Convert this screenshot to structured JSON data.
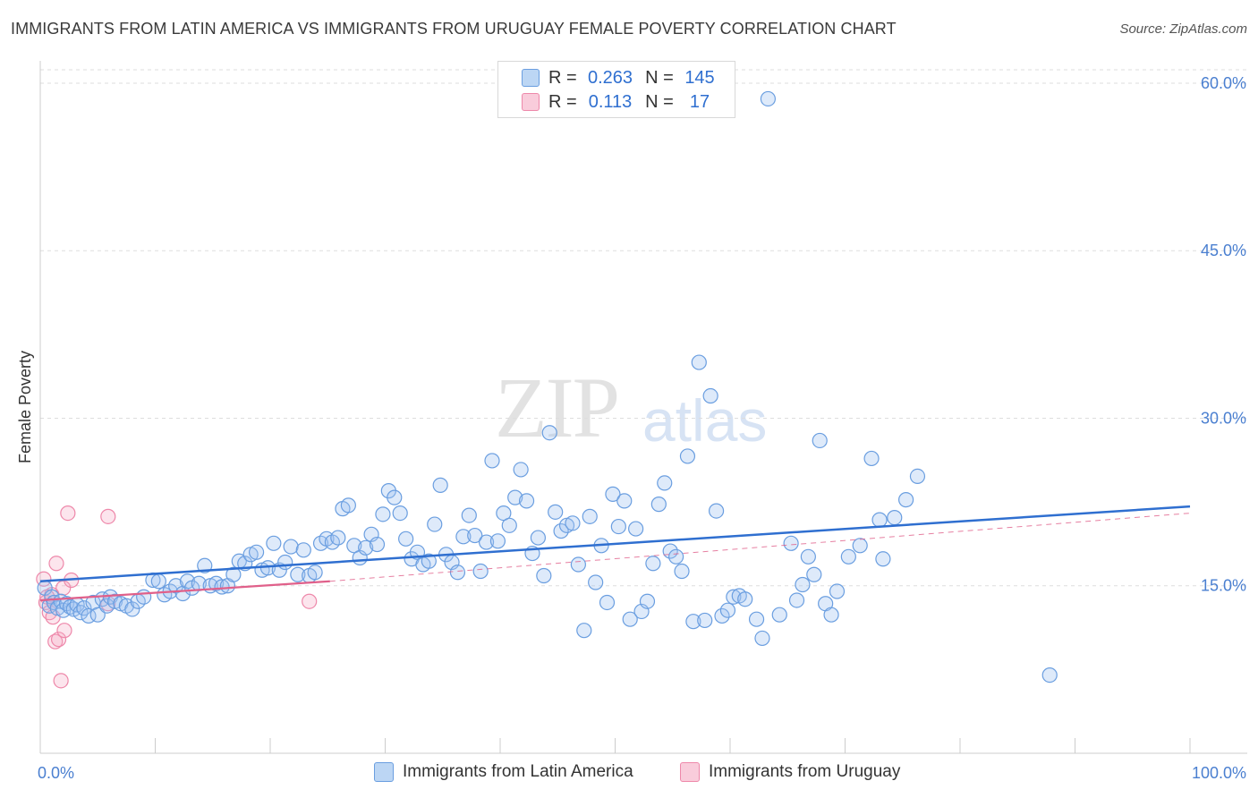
{
  "title": "IMMIGRANTS FROM LATIN AMERICA VS IMMIGRANTS FROM URUGUAY FEMALE POVERTY CORRELATION CHART",
  "source": "Source: ZipAtlas.com",
  "watermark": {
    "zip": "ZIP",
    "atlas": "atlas"
  },
  "legend": {
    "rows": [
      {
        "r_label": "R =",
        "r_value": "0.263",
        "n_label": "N =",
        "n_value": "145"
      },
      {
        "r_label": "R =",
        "r_value": "0.113",
        "n_label": "N =",
        "n_value": "17"
      }
    ]
  },
  "bottom_legend": {
    "series1": "Immigrants from Latin America",
    "series2": "Immigrants from Uruguay"
  },
  "chart_data": {
    "type": "scatter",
    "title": "IMMIGRANTS FROM LATIN AMERICA VS IMMIGRANTS FROM URUGUAY FEMALE POVERTY CORRELATION CHART",
    "xlabel": "",
    "ylabel": "Female Poverty",
    "xlim": [
      0,
      100
    ],
    "ylim": [
      0,
      61.2
    ],
    "x_tick_labels": [
      "0.0%",
      "100.0%"
    ],
    "y_ticks": [
      15,
      30,
      45,
      60
    ],
    "y_tick_labels": [
      "15.0%",
      "30.0%",
      "45.0%",
      "60.0%"
    ],
    "colors": {
      "series1_fill": "rgba(160,196,240,0.35)",
      "series1_stroke": "#6a9ee0",
      "series1_line": "#2f6fd0",
      "series2_fill": "rgba(245,170,195,0.3)",
      "series2_stroke": "#ee88aa",
      "series2_line": "#e0608a",
      "grid": "#dddddd"
    },
    "series": [
      {
        "name": "Immigrants from Latin America",
        "r": 0.263,
        "n": 145,
        "trend": {
          "x": [
            0,
            100
          ],
          "y": [
            15.4,
            22.1
          ]
        },
        "points": [
          [
            0.4,
            14.8
          ],
          [
            0.8,
            13.2
          ],
          [
            1.0,
            14.0
          ],
          [
            1.2,
            13.5
          ],
          [
            1.5,
            13.0
          ],
          [
            1.8,
            13.6
          ],
          [
            2.0,
            12.8
          ],
          [
            2.3,
            13.4
          ],
          [
            2.6,
            13.1
          ],
          [
            2.9,
            12.9
          ],
          [
            3.2,
            13.3
          ],
          [
            3.5,
            12.6
          ],
          [
            3.8,
            13.0
          ],
          [
            4.2,
            12.3
          ],
          [
            4.6,
            13.5
          ],
          [
            5.0,
            12.4
          ],
          [
            5.4,
            13.8
          ],
          [
            5.8,
            13.2
          ],
          [
            6.1,
            14.0
          ],
          [
            6.5,
            13.6
          ],
          [
            7.0,
            13.4
          ],
          [
            7.5,
            13.2
          ],
          [
            8.0,
            12.9
          ],
          [
            8.5,
            13.6
          ],
          [
            9.0,
            14.0
          ],
          [
            9.8,
            15.5
          ],
          [
            10.3,
            15.4
          ],
          [
            10.8,
            14.2
          ],
          [
            11.3,
            14.5
          ],
          [
            11.8,
            15.0
          ],
          [
            12.4,
            14.3
          ],
          [
            12.8,
            15.4
          ],
          [
            13.2,
            14.8
          ],
          [
            13.8,
            15.2
          ],
          [
            14.3,
            16.8
          ],
          [
            14.8,
            15.0
          ],
          [
            15.3,
            15.2
          ],
          [
            15.8,
            14.9
          ],
          [
            16.3,
            15.0
          ],
          [
            16.8,
            16.0
          ],
          [
            17.3,
            17.2
          ],
          [
            17.8,
            17.0
          ],
          [
            18.3,
            17.8
          ],
          [
            18.8,
            18.0
          ],
          [
            19.3,
            16.4
          ],
          [
            19.8,
            16.6
          ],
          [
            20.3,
            18.8
          ],
          [
            20.8,
            16.4
          ],
          [
            21.3,
            17.1
          ],
          [
            21.8,
            18.5
          ],
          [
            22.4,
            16.0
          ],
          [
            22.9,
            18.2
          ],
          [
            23.4,
            15.9
          ],
          [
            23.9,
            16.2
          ],
          [
            24.4,
            18.8
          ],
          [
            24.9,
            19.2
          ],
          [
            25.4,
            18.9
          ],
          [
            25.9,
            19.3
          ],
          [
            26.3,
            21.9
          ],
          [
            26.8,
            22.2
          ],
          [
            27.3,
            18.6
          ],
          [
            27.8,
            17.5
          ],
          [
            28.3,
            18.4
          ],
          [
            28.8,
            19.6
          ],
          [
            29.3,
            18.7
          ],
          [
            29.8,
            21.4
          ],
          [
            30.3,
            23.5
          ],
          [
            30.8,
            22.9
          ],
          [
            31.3,
            21.5
          ],
          [
            31.8,
            19.2
          ],
          [
            32.3,
            17.4
          ],
          [
            32.8,
            18.0
          ],
          [
            33.3,
            16.9
          ],
          [
            33.8,
            17.2
          ],
          [
            34.3,
            20.5
          ],
          [
            34.8,
            24.0
          ],
          [
            35.3,
            17.8
          ],
          [
            35.8,
            17.1
          ],
          [
            36.3,
            16.2
          ],
          [
            36.8,
            19.4
          ],
          [
            37.3,
            21.3
          ],
          [
            37.8,
            19.5
          ],
          [
            38.3,
            16.3
          ],
          [
            38.8,
            18.9
          ],
          [
            39.3,
            26.2
          ],
          [
            39.8,
            19.0
          ],
          [
            40.3,
            21.5
          ],
          [
            40.8,
            20.4
          ],
          [
            41.3,
            22.9
          ],
          [
            41.8,
            25.4
          ],
          [
            42.3,
            22.6
          ],
          [
            42.8,
            17.9
          ],
          [
            43.3,
            19.3
          ],
          [
            43.8,
            15.9
          ],
          [
            44.3,
            28.7
          ],
          [
            44.8,
            21.6
          ],
          [
            45.3,
            19.9
          ],
          [
            45.8,
            20.4
          ],
          [
            46.3,
            20.6
          ],
          [
            46.8,
            16.9
          ],
          [
            47.3,
            11.0
          ],
          [
            47.8,
            21.2
          ],
          [
            48.3,
            15.3
          ],
          [
            48.8,
            18.6
          ],
          [
            49.3,
            13.5
          ],
          [
            49.8,
            23.2
          ],
          [
            50.3,
            20.3
          ],
          [
            50.8,
            22.6
          ],
          [
            51.3,
            12.0
          ],
          [
            51.8,
            20.1
          ],
          [
            52.3,
            12.7
          ],
          [
            52.8,
            13.6
          ],
          [
            53.3,
            17.0
          ],
          [
            53.8,
            22.3
          ],
          [
            54.3,
            24.2
          ],
          [
            54.8,
            18.1
          ],
          [
            55.3,
            17.6
          ],
          [
            55.8,
            16.3
          ],
          [
            56.3,
            26.6
          ],
          [
            56.8,
            11.8
          ],
          [
            57.3,
            35.0
          ],
          [
            57.8,
            11.9
          ],
          [
            58.3,
            32.0
          ],
          [
            58.8,
            21.7
          ],
          [
            59.3,
            12.3
          ],
          [
            59.8,
            12.8
          ],
          [
            60.3,
            14.0
          ],
          [
            60.8,
            14.1
          ],
          [
            61.3,
            13.8
          ],
          [
            62.3,
            12.0
          ],
          [
            62.8,
            10.3
          ],
          [
            63.3,
            58.6
          ],
          [
            64.3,
            12.4
          ],
          [
            65.3,
            18.8
          ],
          [
            65.8,
            13.7
          ],
          [
            66.3,
            15.1
          ],
          [
            66.8,
            17.6
          ],
          [
            67.3,
            16.0
          ],
          [
            67.8,
            28.0
          ],
          [
            68.3,
            13.4
          ],
          [
            68.8,
            12.4
          ],
          [
            69.3,
            14.5
          ],
          [
            70.3,
            17.6
          ],
          [
            71.3,
            18.6
          ],
          [
            72.3,
            26.4
          ],
          [
            73.3,
            17.4
          ],
          [
            74.3,
            21.1
          ],
          [
            75.3,
            22.7
          ],
          [
            76.3,
            24.8
          ],
          [
            87.8,
            7.0
          ],
          [
            73.0,
            20.9
          ]
        ]
      },
      {
        "name": "Immigrants from Uruguay",
        "r": 0.113,
        "n": 17,
        "trend": {
          "x": [
            0,
            25.2
          ],
          "y": [
            13.7,
            15.4
          ]
        },
        "trend_dashed": {
          "x": [
            25.2,
            100
          ],
          "y": [
            15.4,
            21.5
          ]
        },
        "points": [
          [
            0.3,
            15.6
          ],
          [
            0.5,
            13.5
          ],
          [
            0.8,
            12.6
          ],
          [
            1.0,
            14.2
          ],
          [
            1.1,
            12.2
          ],
          [
            1.3,
            10.0
          ],
          [
            1.4,
            17.0
          ],
          [
            1.6,
            10.2
          ],
          [
            1.8,
            6.5
          ],
          [
            2.0,
            14.8
          ],
          [
            2.1,
            11.0
          ],
          [
            2.4,
            21.5
          ],
          [
            2.7,
            15.5
          ],
          [
            5.9,
            21.2
          ],
          [
            5.9,
            13.4
          ],
          [
            23.4,
            13.6
          ],
          [
            0.6,
            14.0
          ]
        ]
      }
    ]
  }
}
